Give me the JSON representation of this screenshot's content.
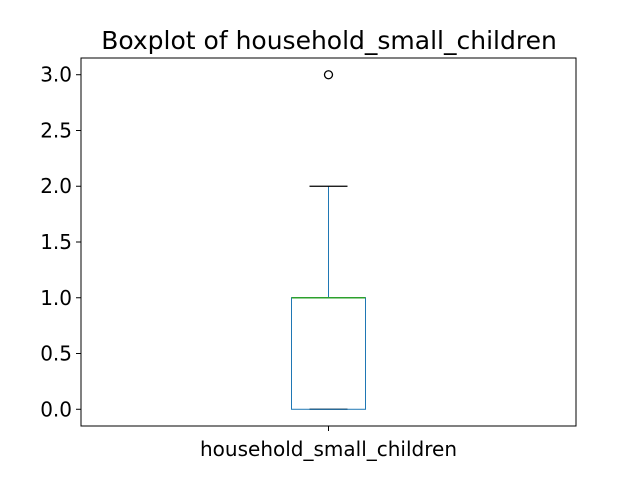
{
  "chart_data": {
    "type": "box",
    "title": "Boxplot of household_small_children",
    "xlabel": "",
    "ylabel": "",
    "categories": [
      "household_small_children"
    ],
    "ylim": [
      -0.15,
      3.15
    ],
    "yticks": [
      "0.0",
      "0.5",
      "1.0",
      "1.5",
      "2.0",
      "2.5",
      "3.0"
    ],
    "boxes": [
      {
        "category": "household_small_children",
        "whisker_low": 0.0,
        "q1": 0.0,
        "median": 1.0,
        "q3": 1.0,
        "whisker_high": 2.0,
        "outliers": [
          3.0
        ]
      }
    ],
    "grid": false,
    "colors": {
      "box": "#1f77b4",
      "median": "#2ca02c",
      "whisker": "#1f77b4",
      "cap": "#000000",
      "flier": "#000000"
    }
  }
}
